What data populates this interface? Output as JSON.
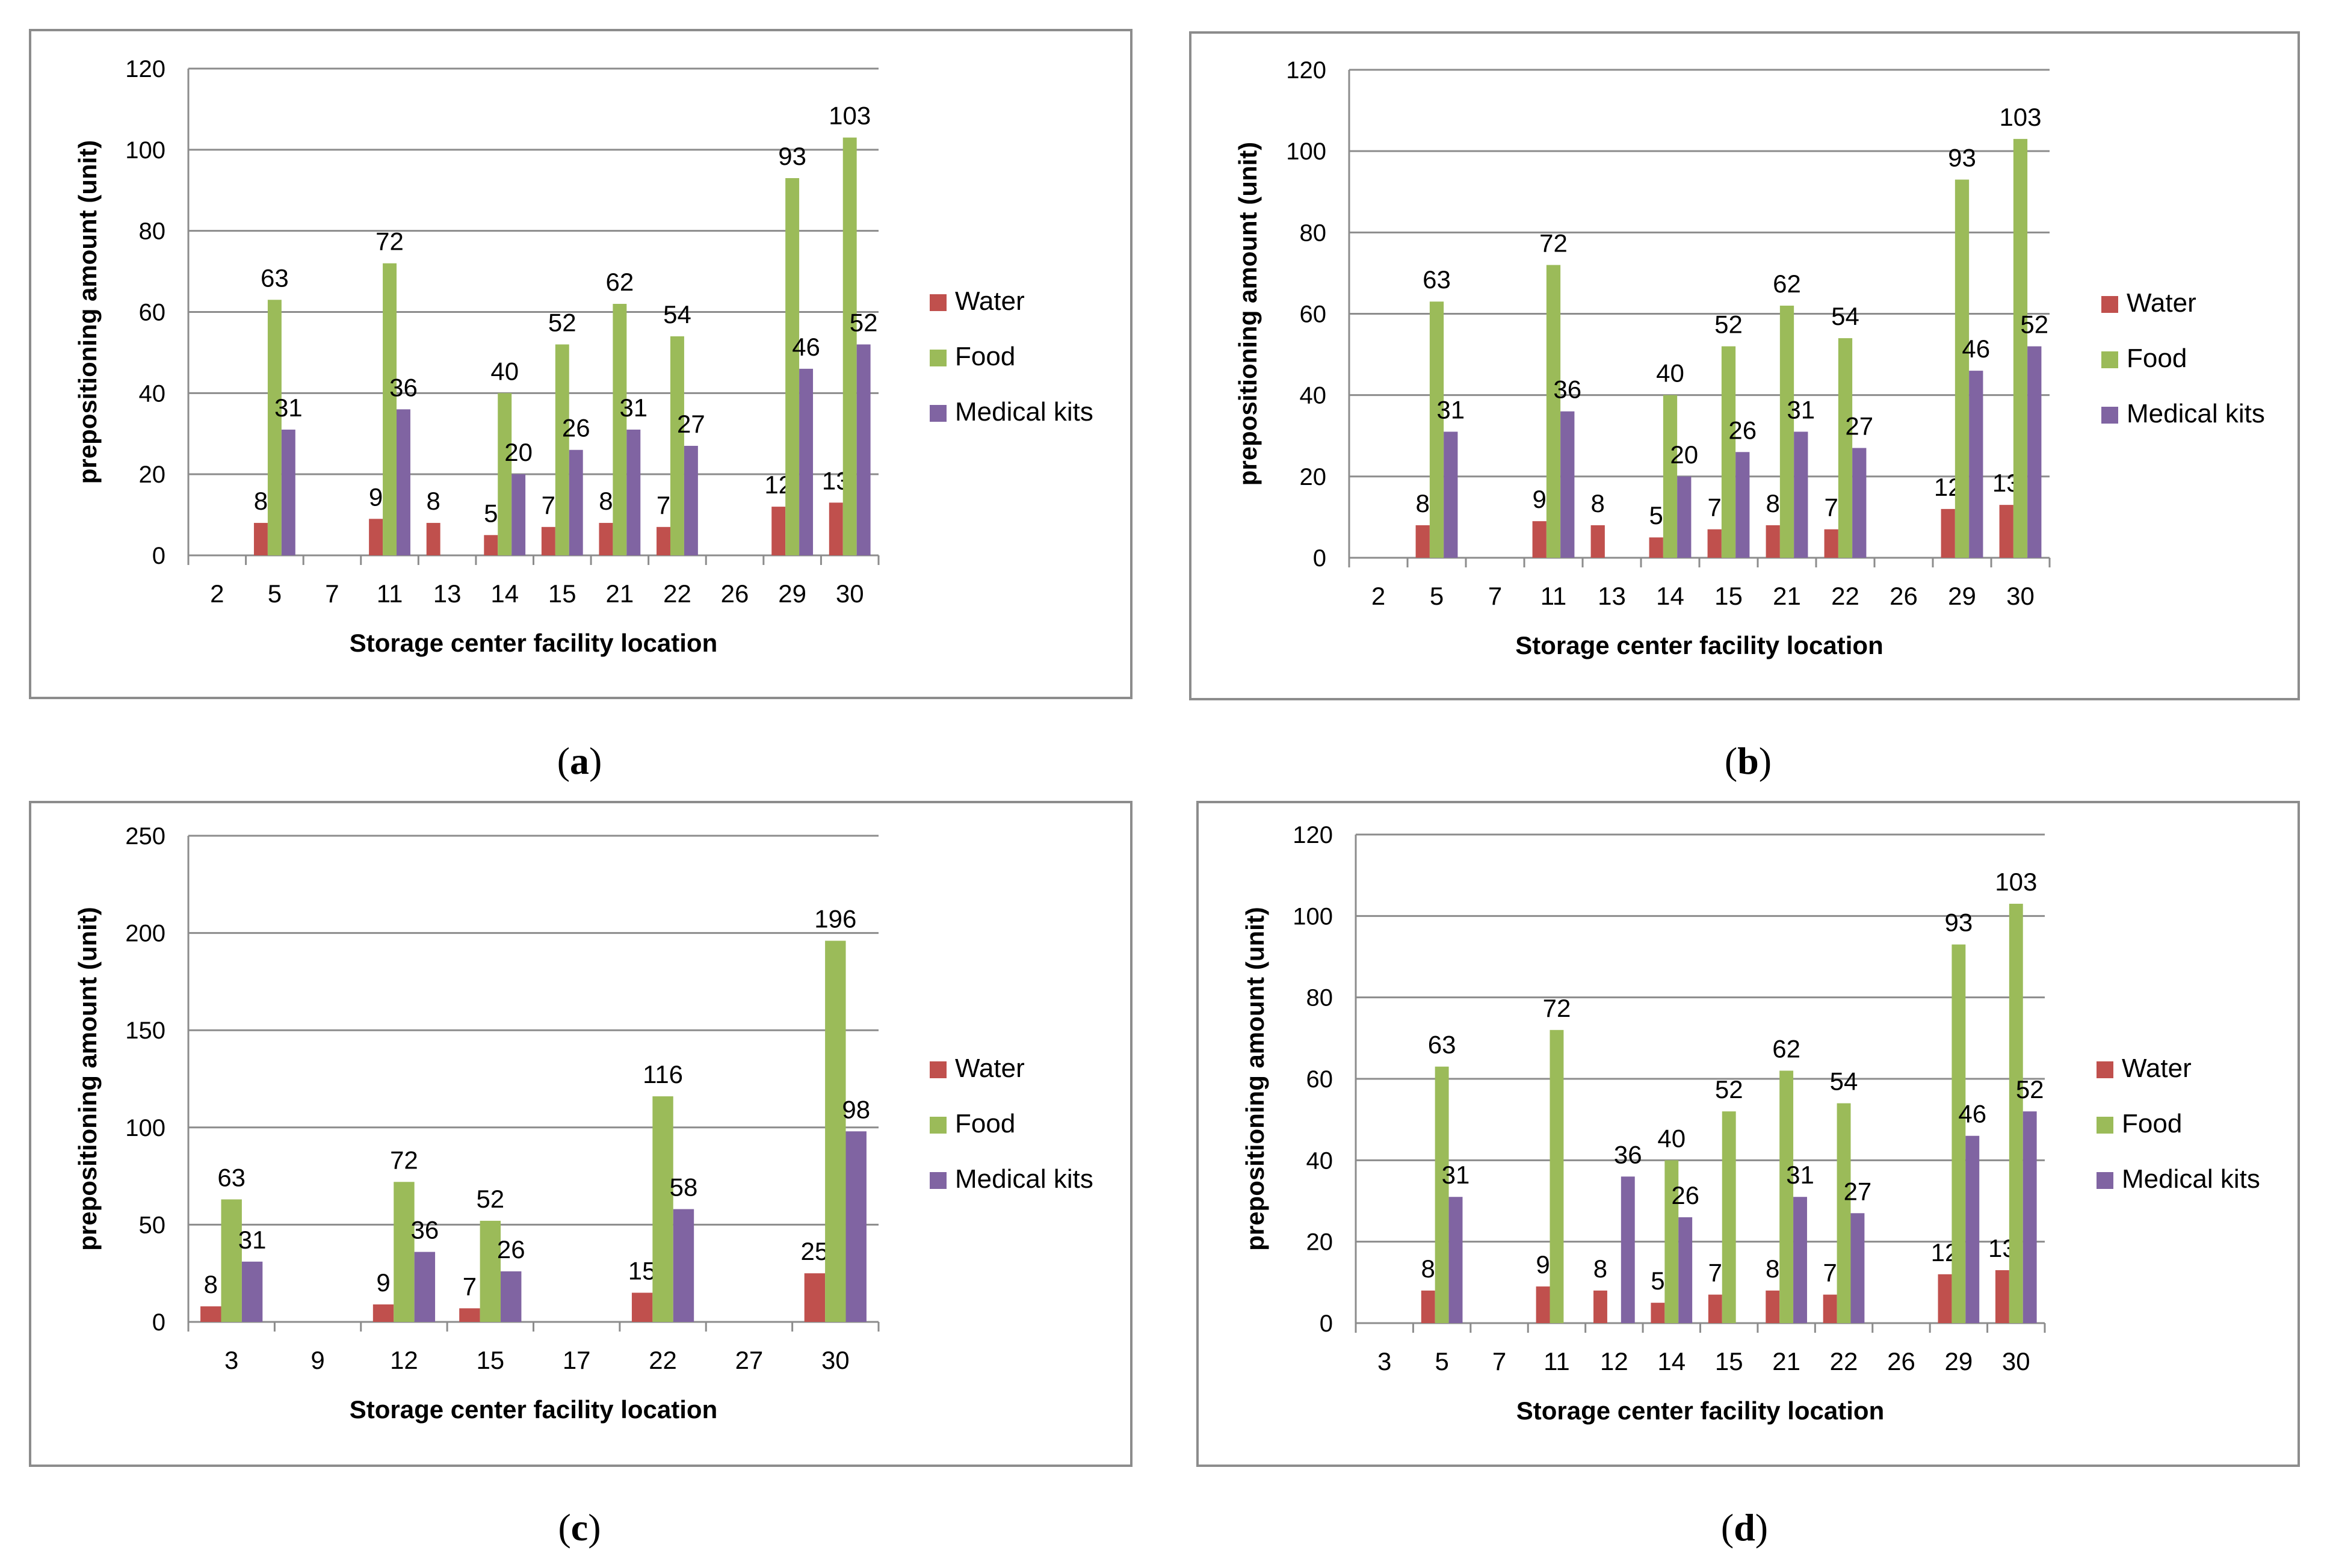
{
  "series_names": [
    "Water",
    "Food",
    "Medical kits"
  ],
  "colors": {
    "Water": "#c0504d",
    "Food": "#9bbb59",
    "Medical kits": "#8064a2"
  },
  "chart_data": [
    {
      "type": "bar",
      "caption_letter": "a",
      "xlabel": "Storage center facility location",
      "ylabel": "prepositioning amount (unit)",
      "ylim": [
        0,
        120
      ],
      "yticks": [
        0,
        20,
        40,
        60,
        80,
        100,
        120
      ],
      "categories": [
        "2",
        "5",
        "7",
        "11",
        "13",
        "14",
        "15",
        "21",
        "22",
        "26",
        "29",
        "30"
      ],
      "series": [
        {
          "name": "Water",
          "values": [
            null,
            8,
            null,
            9,
            8,
            5,
            7,
            8,
            7,
            null,
            12,
            13
          ]
        },
        {
          "name": "Food",
          "values": [
            null,
            63,
            null,
            72,
            null,
            40,
            52,
            62,
            54,
            null,
            93,
            103
          ]
        },
        {
          "name": "Medical kits",
          "values": [
            null,
            31,
            null,
            36,
            null,
            20,
            26,
            31,
            27,
            null,
            46,
            52
          ]
        }
      ]
    },
    {
      "type": "bar",
      "caption_letter": "b",
      "xlabel": "Storage center facility location",
      "ylabel": "prepositioning amount (unit)",
      "ylim": [
        0,
        120
      ],
      "yticks": [
        0,
        20,
        40,
        60,
        80,
        100,
        120
      ],
      "categories": [
        "2",
        "5",
        "7",
        "11",
        "13",
        "14",
        "15",
        "21",
        "22",
        "26",
        "29",
        "30"
      ],
      "series": [
        {
          "name": "Water",
          "values": [
            null,
            8,
            null,
            9,
            8,
            5,
            7,
            8,
            7,
            null,
            12,
            13
          ]
        },
        {
          "name": "Food",
          "values": [
            null,
            63,
            null,
            72,
            null,
            40,
            52,
            62,
            54,
            null,
            93,
            103
          ]
        },
        {
          "name": "Medical kits",
          "values": [
            null,
            31,
            null,
            36,
            null,
            20,
            26,
            31,
            27,
            null,
            46,
            52
          ]
        }
      ]
    },
    {
      "type": "bar",
      "caption_letter": "c",
      "xlabel": "Storage center facility location",
      "ylabel": "prepositioning amount (unit)",
      "ylim": [
        0,
        250
      ],
      "yticks": [
        0,
        50,
        100,
        150,
        200,
        250
      ],
      "categories": [
        "3",
        "9",
        "12",
        "15",
        "17",
        "22",
        "27",
        "30"
      ],
      "series": [
        {
          "name": "Water",
          "values": [
            8,
            null,
            9,
            7,
            null,
            15,
            null,
            25
          ]
        },
        {
          "name": "Food",
          "values": [
            63,
            null,
            72,
            52,
            null,
            116,
            null,
            196
          ]
        },
        {
          "name": "Medical kits",
          "values": [
            31,
            null,
            36,
            26,
            null,
            58,
            null,
            98
          ]
        }
      ]
    },
    {
      "type": "bar",
      "caption_letter": "d",
      "xlabel": "Storage center facility location",
      "ylabel": "prepositioning amount (unit)",
      "ylim": [
        0,
        120
      ],
      "yticks": [
        0,
        20,
        40,
        60,
        80,
        100,
        120
      ],
      "categories": [
        "3",
        "5",
        "7",
        "11",
        "12",
        "14",
        "15",
        "21",
        "22",
        "26",
        "29",
        "30"
      ],
      "series": [
        {
          "name": "Water",
          "values": [
            null,
            8,
            null,
            9,
            8,
            5,
            7,
            8,
            7,
            null,
            12,
            13
          ]
        },
        {
          "name": "Food",
          "values": [
            null,
            63,
            null,
            72,
            null,
            40,
            52,
            62,
            54,
            null,
            93,
            103
          ]
        },
        {
          "name": "Medical kits",
          "values": [
            null,
            31,
            null,
            null,
            36,
            26,
            null,
            31,
            27,
            null,
            46,
            52
          ]
        }
      ]
    }
  ]
}
